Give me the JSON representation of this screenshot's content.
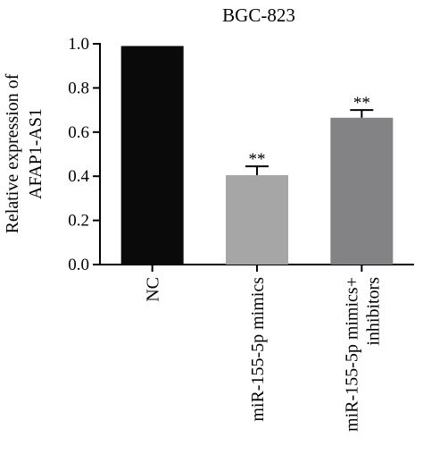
{
  "chart_data": {
    "type": "bar",
    "title": "BGC-823",
    "ylabel_lines": [
      "Relative expression of",
      "AFAP1-AS1"
    ],
    "xlabel": "",
    "ylim": [
      0,
      1.0
    ],
    "yticks": [
      "0.0",
      "0.2",
      "0.4",
      "0.6",
      "0.8",
      "1.0"
    ],
    "categories": [
      {
        "lines": [
          "NC"
        ]
      },
      {
        "lines": [
          "miR-155-5p mimics"
        ]
      },
      {
        "lines": [
          "miR-155-5p mimics+",
          "inhibitors"
        ]
      }
    ],
    "values": [
      0.99,
      0.405,
      0.665
    ],
    "errors": [
      0,
      0.04,
      0.035
    ],
    "annotations": [
      "",
      "**",
      "**"
    ],
    "colors": [
      "#0a0a0a",
      "#a6a6a7",
      "#838385"
    ],
    "grid": false
  }
}
